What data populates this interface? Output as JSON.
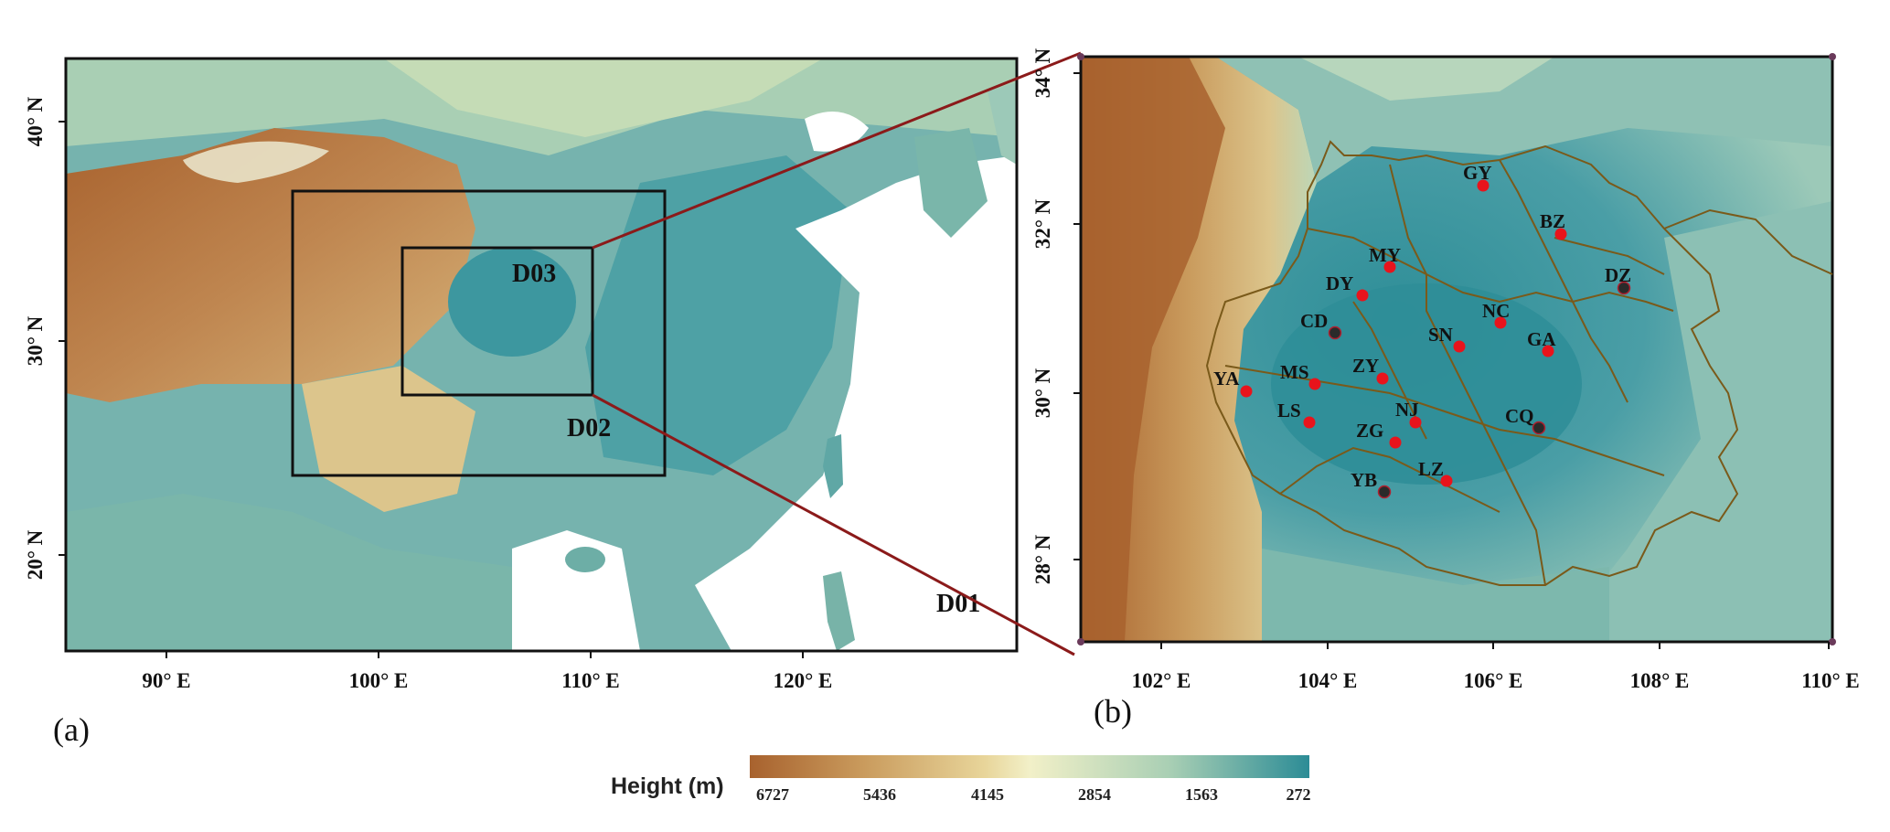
{
  "panel_a": {
    "label": "(a)",
    "x_ticks": [
      "90° E",
      "100° E",
      "110° E",
      "120° E"
    ],
    "y_ticks": [
      "40° N",
      "30° N",
      "20° N"
    ],
    "domains": [
      "D01",
      "D02",
      "D03"
    ]
  },
  "panel_b": {
    "label": "(b)",
    "x_ticks": [
      "102° E",
      "104° E",
      "106° E",
      "108° E",
      "110° E"
    ],
    "y_ticks": [
      "34° N",
      "32° N",
      "30° N",
      "28° N"
    ],
    "stations": [
      {
        "code": "GY",
        "type": "red"
      },
      {
        "code": "BZ",
        "type": "red"
      },
      {
        "code": "MY",
        "type": "red"
      },
      {
        "code": "DZ",
        "type": "dark"
      },
      {
        "code": "DY",
        "type": "red"
      },
      {
        "code": "NC",
        "type": "red"
      },
      {
        "code": "CD",
        "type": "dark"
      },
      {
        "code": "SN",
        "type": "red"
      },
      {
        "code": "GA",
        "type": "red"
      },
      {
        "code": "YA",
        "type": "red"
      },
      {
        "code": "MS",
        "type": "red"
      },
      {
        "code": "ZY",
        "type": "red"
      },
      {
        "code": "LS",
        "type": "red"
      },
      {
        "code": "NJ",
        "type": "red"
      },
      {
        "code": "CQ",
        "type": "dark"
      },
      {
        "code": "ZG",
        "type": "red"
      },
      {
        "code": "YB",
        "type": "dark"
      },
      {
        "code": "LZ",
        "type": "red"
      }
    ]
  },
  "colorbar": {
    "title": "Height (m)",
    "values": [
      "6727",
      "5436",
      "4145",
      "2854",
      "1563",
      "272"
    ],
    "colors": [
      "#a8622e",
      "#c99a5c",
      "#e8d59a",
      "#f2f0c8",
      "#a9cfb4",
      "#2c8c96"
    ]
  },
  "colors": {
    "low": "#2c8c96",
    "mid": "#a9cfb4",
    "high": "#a8622e",
    "zoom_line": "#8b1a1a",
    "station_red": "#e8141c",
    "station_dark": "#2a2a2a"
  }
}
